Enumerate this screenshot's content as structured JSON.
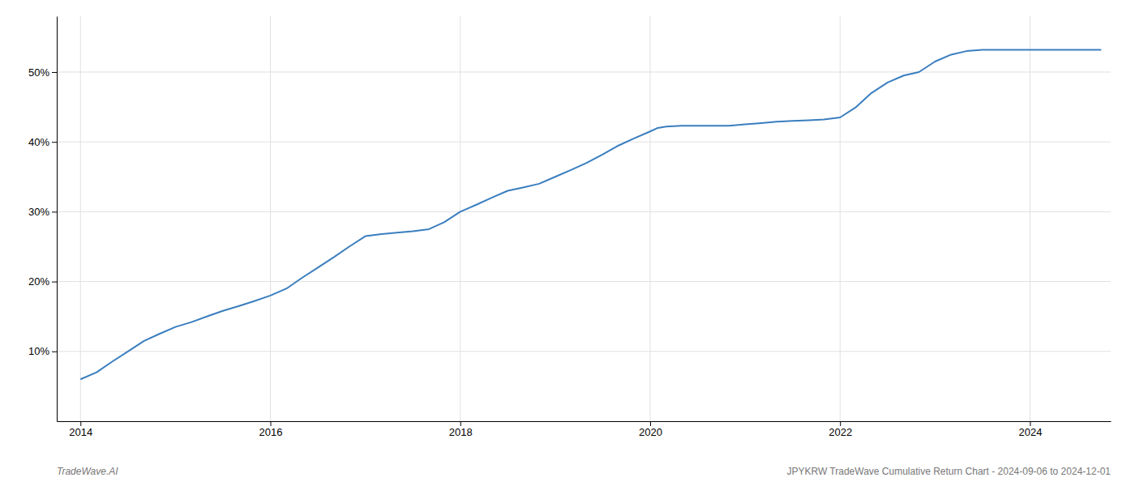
{
  "chart_data": {
    "type": "line",
    "x": [
      2014.0,
      2014.17,
      2014.33,
      2014.5,
      2014.67,
      2014.83,
      2015.0,
      2015.17,
      2015.33,
      2015.5,
      2015.67,
      2015.83,
      2016.0,
      2016.17,
      2016.33,
      2016.5,
      2016.67,
      2016.83,
      2017.0,
      2017.17,
      2017.33,
      2017.5,
      2017.67,
      2017.83,
      2018.0,
      2018.17,
      2018.33,
      2018.5,
      2018.67,
      2018.83,
      2019.0,
      2019.17,
      2019.33,
      2019.5,
      2019.67,
      2019.83,
      2020.0,
      2020.08,
      2020.17,
      2020.33,
      2020.5,
      2020.67,
      2020.83,
      2021.0,
      2021.17,
      2021.33,
      2021.5,
      2021.67,
      2021.83,
      2022.0,
      2022.17,
      2022.33,
      2022.5,
      2022.67,
      2022.83,
      2023.0,
      2023.17,
      2023.33,
      2023.5,
      2023.67,
      2023.83,
      2024.0,
      2024.17,
      2024.5,
      2024.75
    ],
    "values": [
      6.0,
      7.0,
      8.5,
      10.0,
      11.5,
      12.5,
      13.5,
      14.2,
      15.0,
      15.8,
      16.5,
      17.2,
      18.0,
      19.0,
      20.5,
      22.0,
      23.5,
      25.0,
      26.5,
      26.8,
      27.0,
      27.2,
      27.5,
      28.5,
      30.0,
      31.0,
      32.0,
      33.0,
      33.5,
      34.0,
      35.0,
      36.0,
      37.0,
      38.2,
      39.5,
      40.5,
      41.5,
      42.0,
      42.2,
      42.3,
      42.3,
      42.3,
      42.3,
      42.5,
      42.7,
      42.9,
      43.0,
      43.1,
      43.2,
      43.5,
      45.0,
      47.0,
      48.5,
      49.5,
      50.0,
      51.5,
      52.5,
      53.0,
      53.2,
      53.2,
      53.2,
      53.2,
      53.2,
      53.2,
      53.2
    ],
    "color": "#3a7ebf",
    "xlim": [
      2013.75,
      2024.85
    ],
    "ylim": [
      0,
      58
    ],
    "xticks": [
      2014,
      2016,
      2018,
      2020,
      2022,
      2024
    ],
    "yticks": [
      {
        "value": 10,
        "label": "10%"
      },
      {
        "value": 20,
        "label": "20%"
      },
      {
        "value": 30,
        "label": "30%"
      },
      {
        "value": 40,
        "label": "40%"
      },
      {
        "value": 50,
        "label": "50%"
      }
    ],
    "grid": true,
    "annotations": [
      "TradeWave.AI",
      "JPYKRW TradeWave Cumulative Return Chart - 2024-09-06 to 2024-12-01"
    ]
  }
}
